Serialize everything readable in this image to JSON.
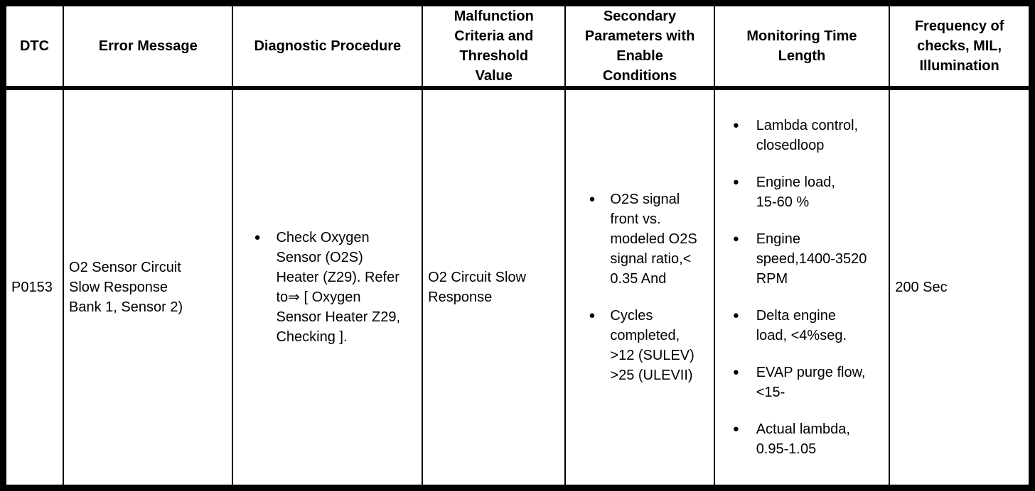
{
  "icons": {
    "bullet": "●"
  },
  "colors": {
    "border": "#000000",
    "text": "#000000",
    "background": "#ffffff"
  },
  "table": {
    "headers": [
      "DTC",
      "Error Message",
      "Diagnostic Procedure",
      "Malfunction\nCriteria and\nThreshold\nValue",
      "Secondary\nParameters with\nEnable\nConditions",
      "Monitoring Time\nLength",
      "Frequency of\nchecks, MIL,\nIllumination"
    ],
    "row": {
      "dtc": "P0153",
      "error_message": "O2 Sensor Circuit\nSlow Response\nBank 1, Sensor 2)",
      "diagnostic_procedure": [
        "Check Oxygen\nSensor (O2S)\nHeater (Z29). Refer\nto⇒ [ Oxygen\nSensor Heater Z29,\nChecking ]."
      ],
      "malfunction_criteria": "O2 Circuit Slow\nResponse",
      "secondary_parameters": [
        "O2S signal\nfront vs.\nmodeled O2S\nsignal ratio,<\n0.35 And",
        "Cycles\ncompleted,\n>12 (SULEV)\n>25 (ULEVII)"
      ],
      "monitoring_time_length": [
        "Lambda control,\nclosedloop",
        "Engine load,\n15-60 %",
        "Engine\nspeed,1400-3520\nRPM",
        "Delta engine\nload, <4%seg.",
        "EVAP purge flow,\n<15-",
        "Actual lambda,\n0.95-1.05"
      ],
      "frequency": "200 Sec"
    }
  }
}
